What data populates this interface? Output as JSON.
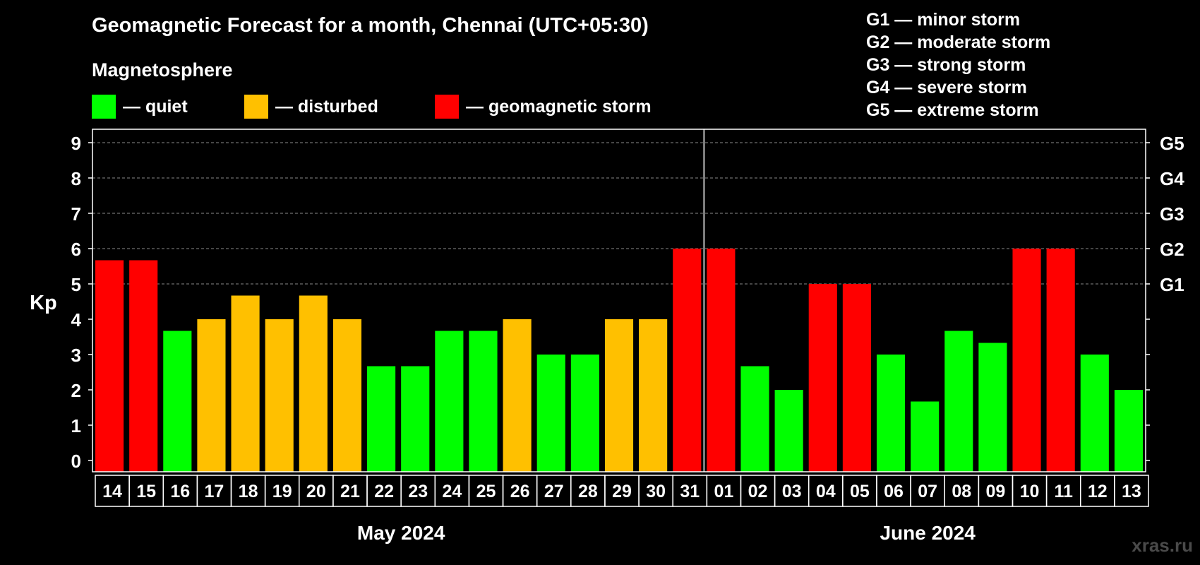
{
  "header": {
    "title": "Geomagnetic Forecast for a month, Chennai (UTC+05:30)",
    "subtitle": "Magnetosphere",
    "watermark": "xras.ru"
  },
  "legend": [
    {
      "label": "— quiet",
      "color": "#00ff00"
    },
    {
      "label": "— disturbed",
      "color": "#ffc000"
    },
    {
      "label": "— geomagnetic storm",
      "color": "#ff0000"
    }
  ],
  "storm_scale": [
    "G1 — minor storm",
    "G2 — moderate storm",
    "G3 — strong storm",
    "G4 — severe storm",
    "G5 — extreme storm"
  ],
  "chart_data": {
    "type": "bar",
    "title": "Geomagnetic Forecast for a month, Chennai (UTC+05:30)",
    "ylabel": "Kp",
    "ylim": [
      0,
      9
    ],
    "yticks": [
      "0",
      "1",
      "2",
      "3",
      "4",
      "5",
      "6",
      "7",
      "8",
      "9"
    ],
    "right_axis": [
      {
        "kp": 5,
        "label": "G1"
      },
      {
        "kp": 6,
        "label": "G2"
      },
      {
        "kp": 7,
        "label": "G3"
      },
      {
        "kp": 8,
        "label": "G4"
      },
      {
        "kp": 9,
        "label": "G5"
      }
    ],
    "grid": "dashed horizontal at Kp 5-9",
    "categories": [
      "14",
      "15",
      "16",
      "17",
      "18",
      "19",
      "20",
      "21",
      "22",
      "23",
      "24",
      "25",
      "26",
      "27",
      "28",
      "29",
      "30",
      "31",
      "01",
      "02",
      "03",
      "04",
      "05",
      "06",
      "07",
      "08",
      "09",
      "10",
      "11",
      "12",
      "13"
    ],
    "values": [
      5.67,
      5.67,
      3.67,
      4,
      4.67,
      4,
      4.67,
      4,
      2.67,
      2.67,
      3.67,
      3.67,
      4,
      3,
      3,
      4,
      4,
      6,
      6,
      2.67,
      2,
      5,
      5,
      3,
      1.67,
      3.67,
      3.33,
      6,
      6,
      3,
      2
    ],
    "status": [
      "storm",
      "storm",
      "quiet",
      "disturbed",
      "disturbed",
      "disturbed",
      "disturbed",
      "disturbed",
      "quiet",
      "quiet",
      "quiet",
      "quiet",
      "disturbed",
      "quiet",
      "quiet",
      "disturbed",
      "disturbed",
      "storm",
      "storm",
      "quiet",
      "quiet",
      "storm",
      "storm",
      "quiet",
      "quiet",
      "quiet",
      "quiet",
      "storm",
      "storm",
      "quiet",
      "quiet"
    ],
    "colors": {
      "quiet": "#00ff00",
      "disturbed": "#ffc000",
      "storm": "#ff0000"
    },
    "months": [
      {
        "label": "May 2024",
        "first_index": 0,
        "last_index": 17
      },
      {
        "label": "June 2024",
        "first_index": 18,
        "last_index": 30
      }
    ]
  }
}
